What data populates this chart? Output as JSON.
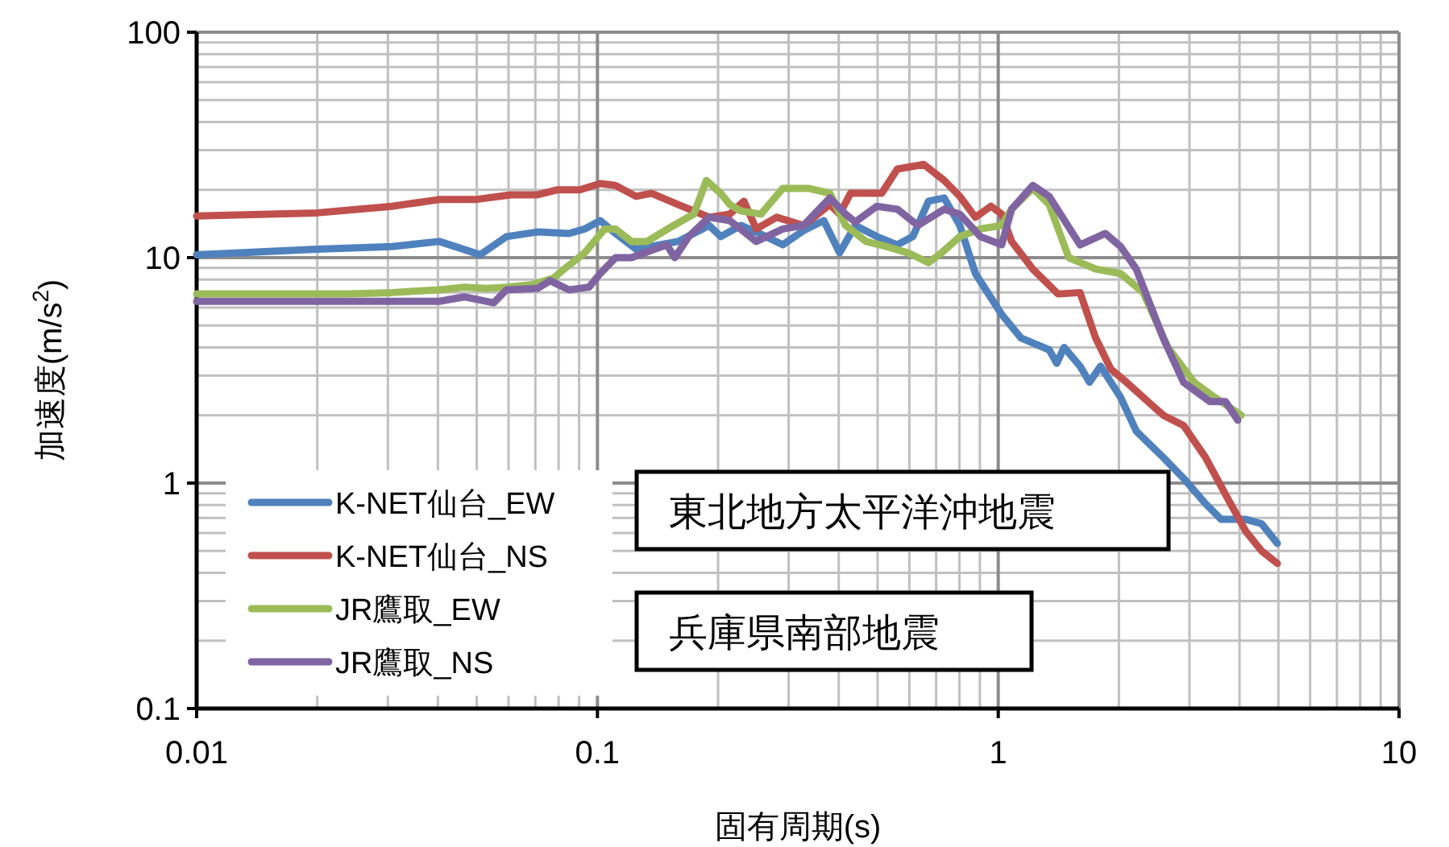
{
  "chart_data": {
    "type": "line",
    "xlabel": "固有周期(s)",
    "ylabel": "加速度(m/s$^{2}$)",
    "log": "xy",
    "grid": true,
    "legend": "bottom left",
    "xlim": [
      0.01,
      10
    ],
    "ylim": [
      0.1,
      100
    ],
    "xticks": [
      0.01,
      0.1,
      1,
      10
    ],
    "yticks": [
      0.1,
      1,
      10,
      100
    ],
    "annotations": [
      "東北地方太平洋沖地震",
      "兵庫県南部地震"
    ],
    "series": [
      {
        "name": "K-NET仙台_EW",
        "color": "#4f81bd",
        "x": [
          0.01,
          0.02,
          0.0307,
          0.0403,
          0.051,
          0.0593,
          0.0709,
          0.0849,
          0.0929,
          0.1016,
          0.111,
          0.1248,
          0.159,
          0.19,
          0.203,
          0.228,
          0.249,
          0.29,
          0.327,
          0.367,
          0.402,
          0.44,
          0.498,
          0.56,
          0.612,
          0.67,
          0.733,
          0.802,
          0.877,
          1.02,
          1.14,
          1.34,
          1.4,
          1.46,
          1.6,
          1.69,
          1.8,
          2.02,
          2.21,
          2.58,
          2.9,
          3.29,
          3.6,
          4.15,
          4.54,
          4.97
        ],
        "values": [
          10.3,
          10.9,
          11.2,
          11.8,
          10.3,
          12.4,
          13.0,
          12.8,
          13.4,
          14.6,
          12.8,
          10.9,
          11.8,
          13.9,
          12.4,
          13.9,
          13.0,
          11.4,
          13.2,
          14.6,
          10.5,
          13.9,
          12.4,
          11.4,
          12.4,
          17.8,
          18.4,
          13.9,
          8.5,
          5.6,
          4.4,
          3.9,
          3.4,
          4.0,
          3.3,
          2.8,
          3.3,
          2.4,
          1.7,
          1.3,
          1.05,
          0.81,
          0.69,
          0.69,
          0.66,
          0.54
        ]
      },
      {
        "name": "K-NET仙台_NS",
        "color": "#c0504d",
        "x": [
          0.01,
          0.02,
          0.0307,
          0.0403,
          0.0495,
          0.0608,
          0.0709,
          0.0796,
          0.0904,
          0.1016,
          0.111,
          0.1248,
          0.1365,
          0.159,
          0.19,
          0.214,
          0.232,
          0.249,
          0.28,
          0.327,
          0.38,
          0.402,
          0.428,
          0.512,
          0.56,
          0.652,
          0.733,
          0.802,
          0.877,
          0.959,
          1.02,
          1.08,
          1.22,
          1.41,
          1.6,
          1.75,
          1.91,
          2.09,
          2.3,
          2.58,
          2.9,
          3.29,
          3.69,
          4.15,
          4.54,
          4.97
        ],
        "values": [
          15.3,
          15.8,
          16.9,
          18.1,
          18.1,
          19.0,
          19.0,
          20.0,
          20.0,
          21.3,
          20.9,
          18.7,
          19.3,
          17.2,
          15.1,
          15.6,
          17.8,
          13.4,
          15.1,
          13.9,
          17.2,
          15.6,
          19.3,
          19.3,
          24.7,
          25.9,
          22.0,
          18.7,
          15.1,
          16.9,
          15.6,
          11.8,
          8.9,
          6.9,
          7.0,
          4.4,
          3.2,
          2.8,
          2.4,
          2.0,
          1.8,
          1.3,
          0.89,
          0.61,
          0.5,
          0.44
        ]
      },
      {
        "name": "JR鷹取_EW",
        "color": "#9bbb59",
        "x": [
          0.01,
          0.0241,
          0.0307,
          0.0403,
          0.0465,
          0.0527,
          0.0593,
          0.069,
          0.0776,
          0.0826,
          0.0929,
          0.1042,
          0.111,
          0.1216,
          0.133,
          0.155,
          0.174,
          0.187,
          0.203,
          0.214,
          0.228,
          0.256,
          0.29,
          0.336,
          0.38,
          0.416,
          0.468,
          0.526,
          0.596,
          0.67,
          0.713,
          0.802,
          0.902,
          1.02,
          1.08,
          1.22,
          1.34,
          1.5,
          1.75,
          2.02,
          2.3,
          2.65,
          3.08,
          3.47,
          4.04
        ],
        "values": [
          6.9,
          6.9,
          7.0,
          7.2,
          7.4,
          7.3,
          7.4,
          7.6,
          8.1,
          8.9,
          10.5,
          13.4,
          13.4,
          11.8,
          11.8,
          13.9,
          15.6,
          22.0,
          19.3,
          17.2,
          16.1,
          15.6,
          20.3,
          20.3,
          19.3,
          13.9,
          11.8,
          11.2,
          10.5,
          9.5,
          10.3,
          12.4,
          13.4,
          13.9,
          16.4,
          20.3,
          17.2,
          10.0,
          8.9,
          8.5,
          7.0,
          4.0,
          2.8,
          2.4,
          2.0
        ]
      },
      {
        "name": "JR鷹取_NS",
        "color": "#8064a2",
        "x": [
          0.01,
          0.0403,
          0.0465,
          0.0551,
          0.0593,
          0.0709,
          0.0762,
          0.0849,
          0.0953,
          0.1016,
          0.111,
          0.1216,
          0.149,
          0.156,
          0.169,
          0.19,
          0.214,
          0.249,
          0.29,
          0.327,
          0.38,
          0.416,
          0.44,
          0.498,
          0.56,
          0.63,
          0.733,
          0.802,
          0.902,
          1.02,
          1.08,
          1.22,
          1.34,
          1.6,
          1.85,
          2.02,
          2.21,
          2.58,
          2.9,
          3.37,
          3.69,
          3.96
        ],
        "values": [
          6.4,
          6.4,
          6.7,
          6.3,
          7.2,
          7.3,
          7.9,
          7.2,
          7.4,
          8.5,
          10.0,
          10.0,
          11.4,
          10.0,
          12.4,
          15.1,
          14.6,
          11.8,
          13.4,
          13.9,
          18.4,
          15.6,
          14.4,
          16.9,
          16.4,
          13.9,
          16.4,
          15.6,
          12.4,
          11.4,
          16.4,
          20.9,
          18.7,
          11.4,
          12.8,
          11.2,
          8.9,
          4.4,
          2.8,
          2.3,
          2.3,
          1.9
        ]
      }
    ]
  }
}
